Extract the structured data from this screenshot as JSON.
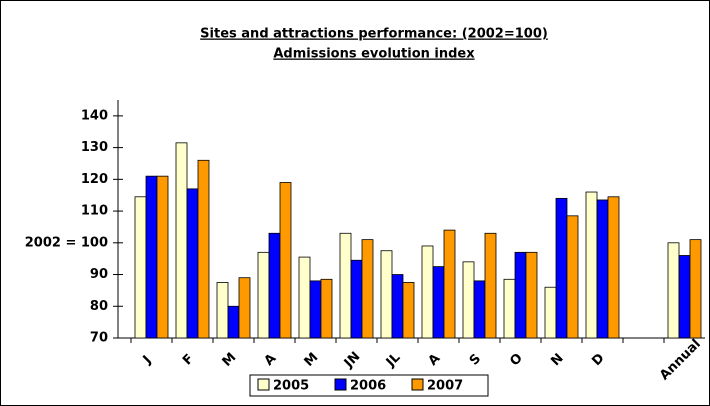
{
  "chart_data": {
    "type": "bar",
    "title": "Sites and attractions performance: (2002=100)",
    "subtitle": "Admissions evolution index",
    "categories": [
      "J",
      "F",
      "M",
      "A",
      "M",
      "JN",
      "JL",
      "A",
      "S",
      "O",
      "N",
      "D",
      null,
      "Annual"
    ],
    "series": [
      {
        "name": "2005",
        "color": "#ffffcc",
        "values": [
          114.5,
          131.5,
          87.5,
          97,
          95.5,
          103,
          97.5,
          99,
          94,
          88.5,
          86,
          116,
          null,
          100
        ]
      },
      {
        "name": "2006",
        "color": "#0000ff",
        "values": [
          121,
          117,
          80,
          103,
          88,
          94.5,
          90,
          92.5,
          88,
          97,
          114,
          113.5,
          null,
          96
        ]
      },
      {
        "name": "2007",
        "color": "#ff9900",
        "values": [
          121,
          126,
          89,
          119,
          88.5,
          101,
          87.5,
          104,
          103,
          97,
          108.5,
          114.5,
          null,
          101
        ]
      }
    ],
    "ylim": [
      70,
      145
    ],
    "yticks": [
      70,
      80,
      90,
      {
        "value": 100,
        "label": "2002 = 100"
      },
      110,
      120,
      130,
      140
    ],
    "legend": "bottom"
  }
}
